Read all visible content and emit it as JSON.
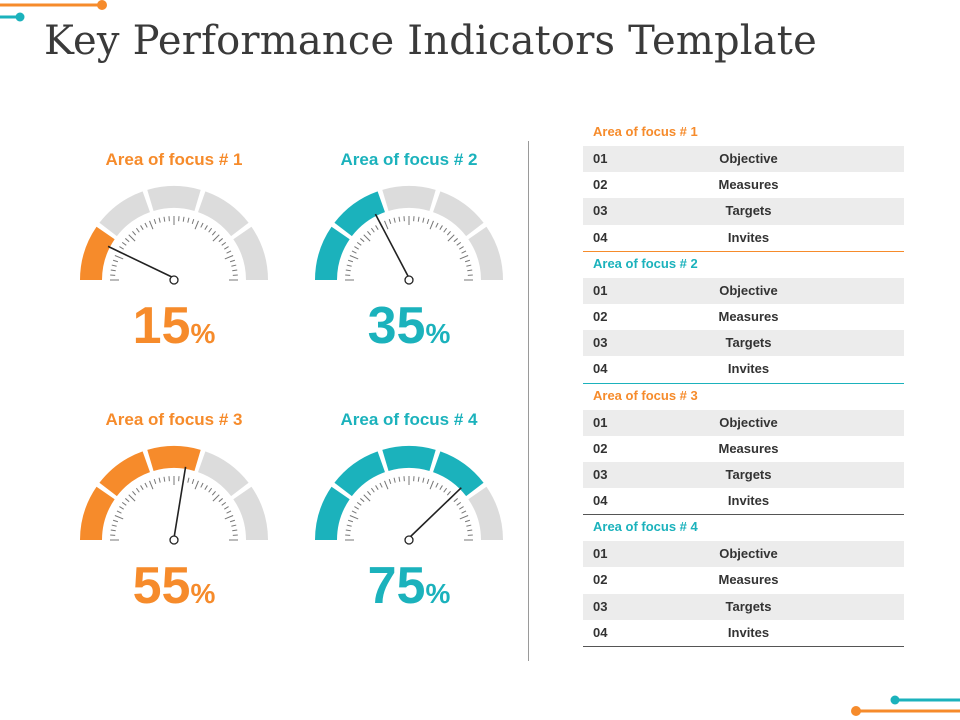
{
  "title": "Key Performance Indicators Template",
  "colors": {
    "orange": "#f68b2b",
    "teal": "#1bb2bc",
    "grey": "#dcdcdc",
    "text": "#3a3a3a",
    "rule_dark": "#555555"
  },
  "gauges": [
    {
      "title": "Area of focus # 1",
      "value": "15",
      "unit": "%",
      "level": 0.15,
      "color": "orange"
    },
    {
      "title": "Area of focus # 2",
      "value": "35",
      "unit": "%",
      "level": 0.35,
      "color": "teal"
    },
    {
      "title": "Area of focus # 3",
      "value": "55",
      "unit": "%",
      "level": 0.55,
      "color": "orange"
    },
    {
      "title": "Area of focus # 4",
      "value": "75",
      "unit": "%",
      "level": 0.75,
      "color": "teal"
    }
  ],
  "table": {
    "sections": [
      {
        "heading": "Area of focus # 1",
        "color": "orange",
        "rule": "orange",
        "rows": [
          {
            "num": "01",
            "label": "Objective"
          },
          {
            "num": "02",
            "label": "Measures"
          },
          {
            "num": "03",
            "label": "Targets"
          },
          {
            "num": "04",
            "label": "Invites"
          }
        ]
      },
      {
        "heading": "Area of focus # 2",
        "color": "teal",
        "rule": "teal",
        "rows": [
          {
            "num": "01",
            "label": "Objective"
          },
          {
            "num": "02",
            "label": "Measures"
          },
          {
            "num": "03",
            "label": "Targets"
          },
          {
            "num": "04",
            "label": "Invites"
          }
        ]
      },
      {
        "heading": "Area of focus # 3",
        "color": "orange",
        "rule": "dark",
        "rows": [
          {
            "num": "01",
            "label": "Objective"
          },
          {
            "num": "02",
            "label": "Measures"
          },
          {
            "num": "03",
            "label": "Targets"
          },
          {
            "num": "04",
            "label": "Invites"
          }
        ]
      },
      {
        "heading": "Area of focus # 4",
        "color": "teal",
        "rule": "dark",
        "rows": [
          {
            "num": "01",
            "label": "Objective"
          },
          {
            "num": "02",
            "label": "Measures"
          },
          {
            "num": "03",
            "label": "Targets"
          },
          {
            "num": "04",
            "label": "Invites"
          }
        ]
      }
    ]
  }
}
